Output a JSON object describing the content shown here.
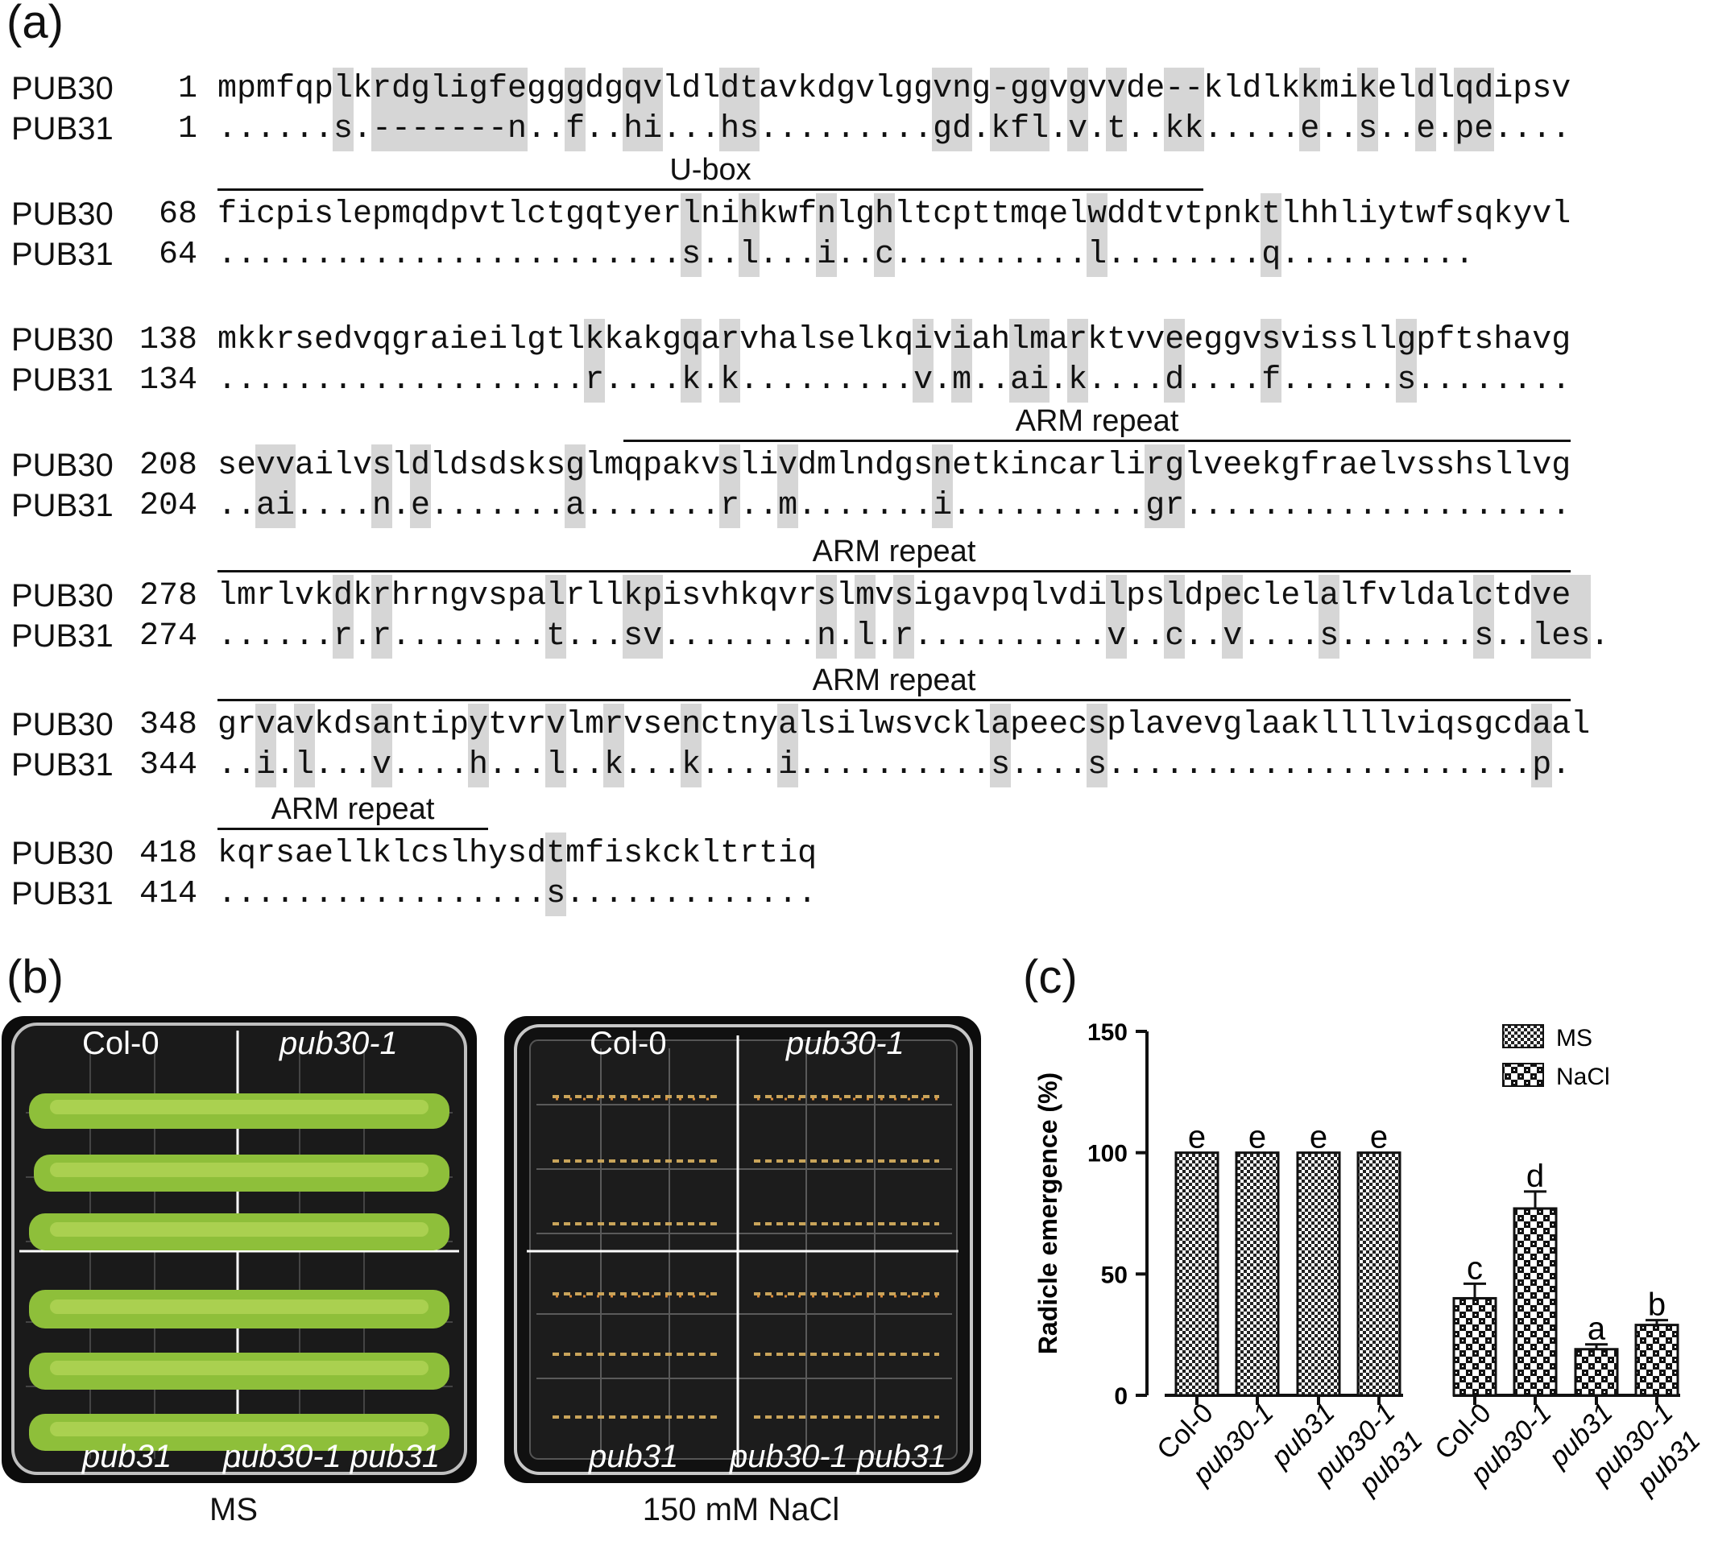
{
  "panels": {
    "a": "(a)",
    "b": "(b)",
    "c": "(c)"
  },
  "alignment": {
    "rows": [
      {
        "name1": "PUB30",
        "num1": "1",
        "seq1": "mpmfqplkrdgligfegggdgqvldldtavkdgvlggvng-ggvgvvde--kldlkkmikeldlqdipsv",
        "name2": "PUB31",
        "num2": "1",
        "seq2": "......s.-------n..f..hi...hs.........gd.kfl.v.t..kk.....e..s..e.pe...."
      },
      {
        "name1": "PUB30",
        "num1": "68",
        "seq1": "ficpislepmqdpvtlctgqtyerlnihkwfnlghltcpttmqelwddtvtpnktlhhliytwfsqkyvl",
        "name2": "PUB31",
        "num2": "64",
        "seq2": "........................s..l...i..c..........l........q.........."
      },
      {
        "name1": "PUB30",
        "num1": "138",
        "seq1": "mkkrsedvqgraieilgtlkkakgqarvhalselkqiviahlmarktvveeggvsvissllgpftshavg",
        "name2": "PUB31",
        "num2": "134",
        "seq2": "...................r....k.k.........v.m..ai.k....d....f......s........"
      },
      {
        "name1": "PUB30",
        "num1": "208",
        "seq1": "sevvailvsldldsdsksglmqpakvslivdmlndgsnetkincarlirglveekgfraelvsshsllvg",
        "name2": "PUB31",
        "num2": "204",
        "seq2": "..ai....n.e.......a.......r..m.......i..........gr...................."
      },
      {
        "name1": "PUB30",
        "num1": "278",
        "seq1": "lmrlvkdkrhrngvspalrllkpisvhkqvrslmvsigavpqlvdilpsldpeclelalfvldalctdve",
        "name2": "PUB31",
        "num2": "274",
        "seq2": "......r.r........t...sv........n.l.r..........v..c..v....s.......s..les."
      },
      {
        "name1": "PUB30",
        "num1": "348",
        "seq1": "grvavkdsantipytvrvlmrvsenctnyalsilwsvcklapeecsplavevglaakllllviqsgcdaal",
        "name2": "PUB31",
        "num2": "344",
        "seq2": "..i.l...v....h...l..k...k....i..........s....s......................p."
      },
      {
        "name1": "PUB30",
        "num1": "418",
        "seq1": "kqrsaellklcslhysdtmfiskckltrtiq",
        "name2": "PUB31",
        "num2": "414",
        "seq2": ".................s............."
      }
    ],
    "domains": [
      "U-box",
      "ARM repeat",
      "ARM repeat",
      "ARM repeat",
      "ARM repeat"
    ]
  },
  "photos": {
    "left": {
      "caption": "MS",
      "labels": [
        "Col-0",
        "pub30-1",
        "pub31",
        "pub30-1 pub31"
      ]
    },
    "right": {
      "caption": "150 mM NaCl",
      "labels": [
        "Col-0",
        "pub30-1",
        "pub31",
        "pub30-1 pub31"
      ]
    }
  },
  "chart_data": {
    "type": "bar",
    "ylabel": "Radicle emergence (%)",
    "ylim": [
      0,
      150
    ],
    "yticks": [
      "0",
      "50",
      "100",
      "150"
    ],
    "categories": [
      "Col-0",
      "pub30-1",
      "pub31",
      "pub30-1 pub31",
      "Col-0",
      "pub30-1",
      "pub31",
      "pub30-1 pub31"
    ],
    "category_lines": [
      [
        "Col-0"
      ],
      [
        "pub30-1"
      ],
      [
        "pub31"
      ],
      [
        "pub30-1",
        "pub31"
      ],
      [
        "Col-0"
      ],
      [
        "pub30-1"
      ],
      [
        "pub31"
      ],
      [
        "pub30-1",
        "pub31"
      ]
    ],
    "category_italic": [
      false,
      true,
      true,
      true,
      false,
      true,
      true,
      true
    ],
    "groups": [
      "MS",
      "MS",
      "MS",
      "MS",
      "NaCl",
      "NaCl",
      "NaCl",
      "NaCl"
    ],
    "values": [
      100,
      100,
      100,
      100,
      40,
      77,
      19,
      29
    ],
    "errors": [
      0,
      0,
      0,
      0,
      6,
      7,
      2,
      2
    ],
    "letters": [
      "e",
      "e",
      "e",
      "e",
      "c",
      "d",
      "a",
      "b"
    ],
    "legend": [
      {
        "name": "MS",
        "pattern": "ms"
      },
      {
        "name": "NaCl",
        "pattern": "nacl"
      }
    ]
  }
}
